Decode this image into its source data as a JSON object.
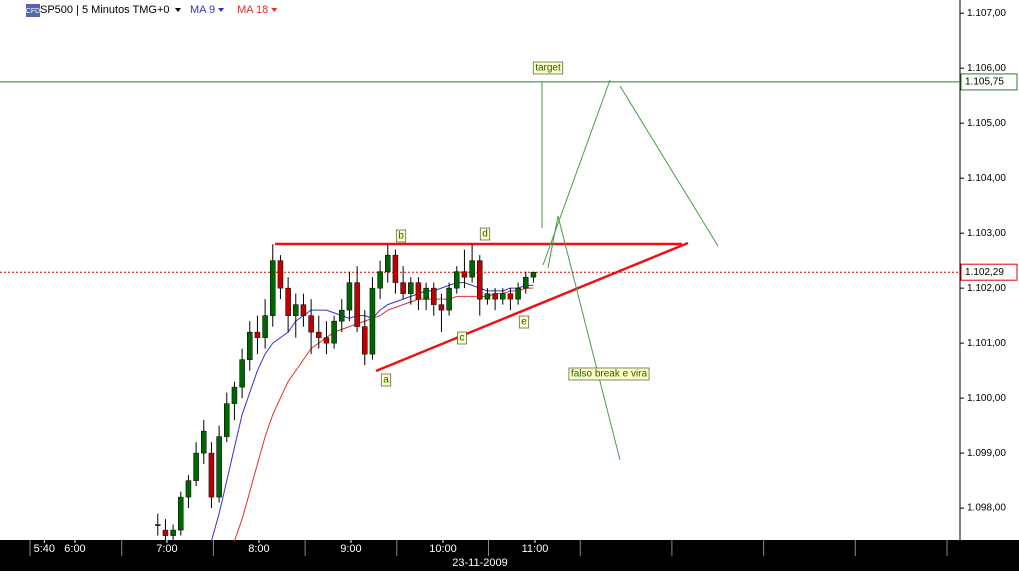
{
  "chart_data": {
    "type": "candlestick",
    "title": "SP500 | 5 Minutos TMG+0",
    "icon": "CFD",
    "date": "23-11-2009",
    "xlim": [
      5.185,
      15.62
    ],
    "ylim": [
      1097.42,
      1107.24
    ],
    "xticks": [
      {
        "value": 5.667,
        "label": "5:40"
      },
      {
        "value": 6,
        "label": "6:00"
      },
      {
        "value": 7,
        "label": "7:00"
      },
      {
        "value": 8,
        "label": "8:00"
      },
      {
        "value": 9,
        "label": "9:00"
      },
      {
        "value": 10,
        "label": "10:00"
      },
      {
        "value": 11,
        "label": "11:00"
      }
    ],
    "yticks": [
      {
        "value": 1098,
        "label": "1.098,00"
      },
      {
        "value": 1099,
        "label": "1.099,00"
      },
      {
        "value": 1100,
        "label": "1.100,00"
      },
      {
        "value": 1101,
        "label": "1.101,00"
      },
      {
        "value": 1102,
        "label": "1.102,00"
      },
      {
        "value": 1103,
        "label": "1.103,00"
      },
      {
        "value": 1104,
        "label": "1.104,00"
      },
      {
        "value": 1105,
        "label": "1.105,00"
      },
      {
        "value": 1106,
        "label": "1.106,00"
      },
      {
        "value": 1107,
        "label": "1.107,00"
      }
    ],
    "up_color": "#006400",
    "down_color": "#c00000",
    "x": [
      6.9,
      6.9833,
      7.0667,
      7.15,
      7.2333,
      7.3167,
      7.4,
      7.4833,
      7.5667,
      7.65,
      7.7333,
      7.8167,
      7.9,
      7.9833,
      8.0667,
      8.15,
      8.2333,
      8.3167,
      8.4,
      8.4833,
      8.5667,
      8.65,
      8.7333,
      8.8167,
      8.9,
      8.9833,
      9.0667,
      9.15,
      9.2333,
      9.3167,
      9.4,
      9.4833,
      9.5667,
      9.65,
      9.7333,
      9.8167,
      9.9,
      9.9833,
      10.0667,
      10.15,
      10.2333,
      10.3167,
      10.4,
      10.4833,
      10.5667,
      10.65,
      10.7333,
      10.8167,
      10.9,
      10.9833
    ],
    "open": [
      1097.7,
      1097.6,
      1097.5,
      1097.6,
      1098.2,
      1098.5,
      1099.0,
      1099.0,
      1098.2,
      1099.3,
      1099.9,
      1100.2,
      1100.7,
      1101.2,
      1101.1,
      1101.5,
      1102.5,
      1102.0,
      1101.5,
      1101.7,
      1101.5,
      1101.2,
      1101.1,
      1101.0,
      1101.4,
      1101.6,
      1102.1,
      1101.3,
      1100.8,
      1102.0,
      1102.3,
      1102.6,
      1102.1,
      1101.9,
      1102.1,
      1101.8,
      1102.0,
      1101.7,
      1101.6,
      1102.0,
      1102.3,
      1102.2,
      1102.5,
      1101.8,
      1101.9,
      1101.8,
      1101.9,
      1101.8,
      1102.0,
      1102.2
    ],
    "high": [
      1097.9,
      1097.8,
      1097.7,
      1098.3,
      1098.6,
      1099.2,
      1099.6,
      1099.2,
      1099.5,
      1100.1,
      1100.3,
      1100.9,
      1101.4,
      1101.5,
      1101.8,
      1102.8,
      1102.6,
      1102.2,
      1101.9,
      1101.9,
      1101.8,
      1101.5,
      1101.4,
      1101.5,
      1101.8,
      1102.3,
      1102.4,
      1101.6,
      1102.2,
      1102.5,
      1102.8,
      1102.7,
      1102.4,
      1102.2,
      1102.2,
      1102.1,
      1102.1,
      1101.9,
      1102.1,
      1102.4,
      1102.7,
      1102.8,
      1102.6,
      1102.0,
      1102.0,
      1102.0,
      1102.0,
      1102.1,
      1102.3,
      1102.3
    ],
    "low": [
      1097.5,
      1097.4,
      1097.4,
      1097.5,
      1098.0,
      1098.4,
      1098.8,
      1098.0,
      1098.1,
      1099.2,
      1099.6,
      1100.0,
      1100.5,
      1100.8,
      1100.9,
      1101.3,
      1101.8,
      1101.2,
      1101.1,
      1101.3,
      1100.8,
      1100.9,
      1100.8,
      1100.9,
      1101.2,
      1101.4,
      1101.2,
      1100.6,
      1100.7,
      1101.8,
      1102.1,
      1101.9,
      1101.8,
      1101.7,
      1101.6,
      1101.6,
      1101.5,
      1101.2,
      1101.5,
      1101.9,
      1102.0,
      1102.1,
      1101.5,
      1101.7,
      1101.6,
      1101.7,
      1101.6,
      1101.7,
      1101.9,
      1102.1
    ],
    "close": [
      1097.7,
      1097.5,
      1097.6,
      1098.2,
      1098.5,
      1099.0,
      1099.4,
      1098.2,
      1099.3,
      1099.9,
      1100.2,
      1100.7,
      1101.2,
      1101.1,
      1101.5,
      1102.5,
      1102.0,
      1101.5,
      1101.7,
      1101.5,
      1101.2,
      1101.1,
      1101.0,
      1101.4,
      1101.6,
      1102.1,
      1101.3,
      1100.8,
      1102.0,
      1102.3,
      1102.6,
      1102.1,
      1101.9,
      1102.1,
      1101.8,
      1102.0,
      1101.7,
      1101.6,
      1102.0,
      1102.3,
      1102.2,
      1102.5,
      1101.8,
      1101.9,
      1101.8,
      1101.9,
      1101.8,
      1102.0,
      1102.2,
      1102.29
    ],
    "series": [
      {
        "name": "MA 9",
        "color": "#3333cc",
        "values": [
          null,
          null,
          null,
          null,
          null,
          null,
          null,
          1097.4,
          1097.9,
          1098.5,
          1099.1,
          1099.7,
          1100.1,
          1100.5,
          1100.8,
          1101.0,
          1101.1,
          1101.2,
          1101.4,
          1101.5,
          1101.6,
          1101.6,
          1101.6,
          1101.55,
          1101.5,
          1101.45,
          1101.5,
          1101.5,
          1101.45,
          1101.6,
          1101.7,
          1101.75,
          1101.8,
          1101.85,
          1101.9,
          1101.95,
          1101.95,
          1102.0,
          1102.05,
          1102.1,
          1102.1,
          1102.05,
          1102.0,
          1101.95,
          1101.95,
          1101.95,
          1102.0,
          1102.0,
          1102.05,
          1102.05
        ]
      },
      {
        "name": "MA 18",
        "color": "#e03030",
        "values": [
          null,
          null,
          null,
          null,
          null,
          null,
          null,
          null,
          null,
          null,
          1097.4,
          1097.8,
          1098.3,
          1098.8,
          1099.3,
          1099.7,
          1100.0,
          1100.3,
          1100.5,
          1100.7,
          1100.9,
          1101.0,
          1101.1,
          1101.2,
          1101.25,
          1101.3,
          1101.35,
          1101.4,
          1101.45,
          1101.5,
          1101.6,
          1101.65,
          1101.7,
          1101.75,
          1101.8,
          1101.8,
          1101.8,
          1101.8,
          1101.8,
          1101.85,
          1101.85,
          1101.85,
          1101.85,
          1101.85,
          1101.9,
          1101.9,
          1101.95,
          1101.95,
          1102.0,
          1102.0
        ]
      }
    ],
    "hlines": [
      {
        "value": 1105.75,
        "label": "1.105,75",
        "color": "#2e7d32"
      },
      {
        "value": 1102.29,
        "label": "1.102,29",
        "color": "#e00000"
      }
    ],
    "annotations": [
      "target",
      "a",
      "b",
      "c",
      "d",
      "e",
      "falso break e vira"
    ]
  }
}
